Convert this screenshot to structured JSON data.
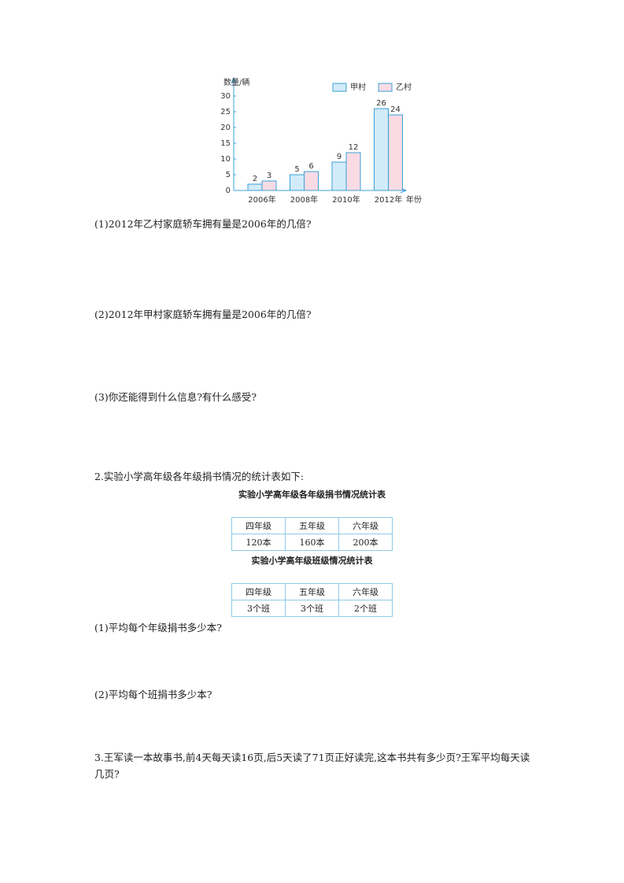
{
  "chart_data": {
    "type": "bar",
    "y_label": "数量/辆",
    "x_label": "年份",
    "categories": [
      "2006年",
      "2008年",
      "2010年",
      "2012年"
    ],
    "series": [
      {
        "name": "甲村",
        "color": "#d2ebf9",
        "values": [
          2,
          5,
          9,
          26
        ]
      },
      {
        "name": "乙村",
        "color": "#fadbe4",
        "values": [
          3,
          6,
          12,
          24
        ]
      }
    ],
    "ylim": [
      0,
      30
    ],
    "yticks": [
      0,
      5,
      10,
      15,
      20,
      25,
      30
    ]
  },
  "questions1": [
    "(1)2012年乙村家庭轿车拥有量是2006年的几倍?",
    "(2)2012年甲村家庭轿车拥有量是2006年的几倍?",
    "(3)你还能得到什么信息?有什么感受?"
  ],
  "section2": {
    "heading": "2.实验小学高年级各年级捐书情况的统计表如下:",
    "tables": [
      {
        "title": "实验小学高年级各年级捐书情况统计表",
        "rows": [
          [
            "四年级",
            "五年级",
            "六年级"
          ],
          [
            "120本",
            "160本",
            "200本"
          ]
        ]
      },
      {
        "title": "实验小学高年级班级情况统计表",
        "rows": [
          [
            "四年级",
            "五年级",
            "六年级"
          ],
          [
            "3个班",
            "3个班",
            "2个班"
          ]
        ]
      }
    ],
    "questions": [
      "(1)平均每个年级捐书多少本?",
      "(2)平均每个班捐书多少本?"
    ]
  },
  "section3": "3.王军读一本故事书,前4天每天读16页,后5天读了71页正好读完,这本书共有多少页?王军平均每天读几页?"
}
